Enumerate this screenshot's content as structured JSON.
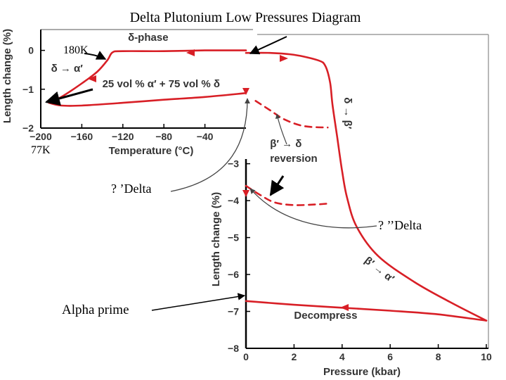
{
  "title": "Delta Plutonium Low Pressures Diagram",
  "colors": {
    "curve": "#d81f26",
    "axis": "#000000",
    "grid": "#9a9a9a",
    "arrow": "#000000"
  },
  "chart_data": [
    {
      "type": "line",
      "name": "temperature-inset",
      "xlabel": "Temperature (°C)",
      "ylabel": "Length change (%)",
      "xlim": [
        -200,
        0
      ],
      "ylim": [
        -2,
        0.5
      ],
      "x_ticks": [
        -200,
        -160,
        -120,
        -80,
        -40
      ],
      "y_ticks": [
        0,
        -1,
        -2
      ],
      "x_tick_labels": [
        "−200",
        "−160",
        "−120",
        "−80",
        "−40"
      ],
      "y_tick_labels": [
        "0",
        "−1",
        "−2"
      ],
      "series": [
        {
          "x": [
            0,
            -40,
            -80,
            -120,
            -130,
            -135,
            -145,
            -160,
            -180,
            -192
          ],
          "y": [
            0.0,
            0.0,
            -0.02,
            -0.02,
            -0.05,
            -0.25,
            -0.55,
            -0.85,
            -1.2,
            -1.35
          ],
          "style": "solid"
        },
        {
          "x": [
            -192,
            -180,
            -160,
            -120,
            -80,
            -40,
            0
          ],
          "y": [
            -1.35,
            -1.42,
            -1.42,
            -1.35,
            -1.27,
            -1.2,
            -1.1
          ],
          "style": "solid"
        }
      ],
      "annotations": [
        {
          "text": "δ-phase",
          "x": -115,
          "y": 0.25
        },
        {
          "text": "δ → α′",
          "x": -190,
          "y": -0.55
        },
        {
          "text": "25 vol % α′ + 75 vol % δ",
          "x": -140,
          "y": -0.95
        }
      ]
    },
    {
      "type": "line",
      "name": "pressure-main",
      "xlabel": "Pressure (kbar)",
      "ylabel": "Length change (%)",
      "xlim": [
        0,
        10
      ],
      "ylim": [
        -8,
        0.5
      ],
      "x_ticks": [
        0,
        2,
        4,
        6,
        8,
        10
      ],
      "y_ticks": [
        -3,
        -4,
        -5,
        -6,
        -7,
        -8
      ],
      "x_tick_labels": [
        "0",
        "2",
        "4",
        "6",
        "8",
        "10"
      ],
      "y_tick_labels": [
        "−3",
        "−4",
        "−5",
        "−6",
        "−7",
        "−8"
      ],
      "series": [
        {
          "x": [
            0,
            1,
            2,
            3,
            3.3,
            3.5,
            3.6,
            3.8,
            4.0,
            4.2,
            4.6,
            5.5,
            7,
            8.5,
            10
          ],
          "y": [
            0.0,
            0.0,
            -0.05,
            -0.2,
            -0.35,
            -0.8,
            -1.4,
            -2.3,
            -3.2,
            -3.9,
            -4.7,
            -5.5,
            -6.2,
            -6.75,
            -7.25
          ],
          "style": "solid"
        },
        {
          "x": [
            10,
            8,
            6,
            4,
            2,
            0
          ],
          "y": [
            -7.25,
            -7.08,
            -6.98,
            -6.9,
            -6.82,
            -6.72
          ],
          "style": "solid"
        },
        {
          "x": [
            0.4,
            1,
            1.6,
            2.4,
            3.4
          ],
          "y": [
            -1.3,
            -1.55,
            -1.8,
            -1.98,
            -2.02
          ],
          "style": "dashed"
        },
        {
          "x": [
            0,
            0.6,
            1.2,
            2,
            3,
            3.4
          ],
          "y": [
            -3.6,
            -3.85,
            -4.05,
            -4.12,
            -4.1,
            -4.08
          ],
          "style": "dashed"
        }
      ],
      "annotations": [
        {
          "text": "β′ → δ",
          "x": 1.0,
          "y": -2.55
        },
        {
          "text": "reversion",
          "x": 1.0,
          "y": -2.95
        },
        {
          "text": "δ → β′",
          "x": 4.1,
          "y": -1.2
        },
        {
          "text": "β′ → α′",
          "x": 4.9,
          "y": -5.65
        },
        {
          "text": "Decompress",
          "x": 2.0,
          "y": -7.2
        }
      ]
    }
  ],
  "labels": {
    "k180": "180K",
    "k77": "77K",
    "delta1": "? ’Delta",
    "delta2": "? ’’Delta",
    "alpha_prime": "Alpha prime"
  }
}
